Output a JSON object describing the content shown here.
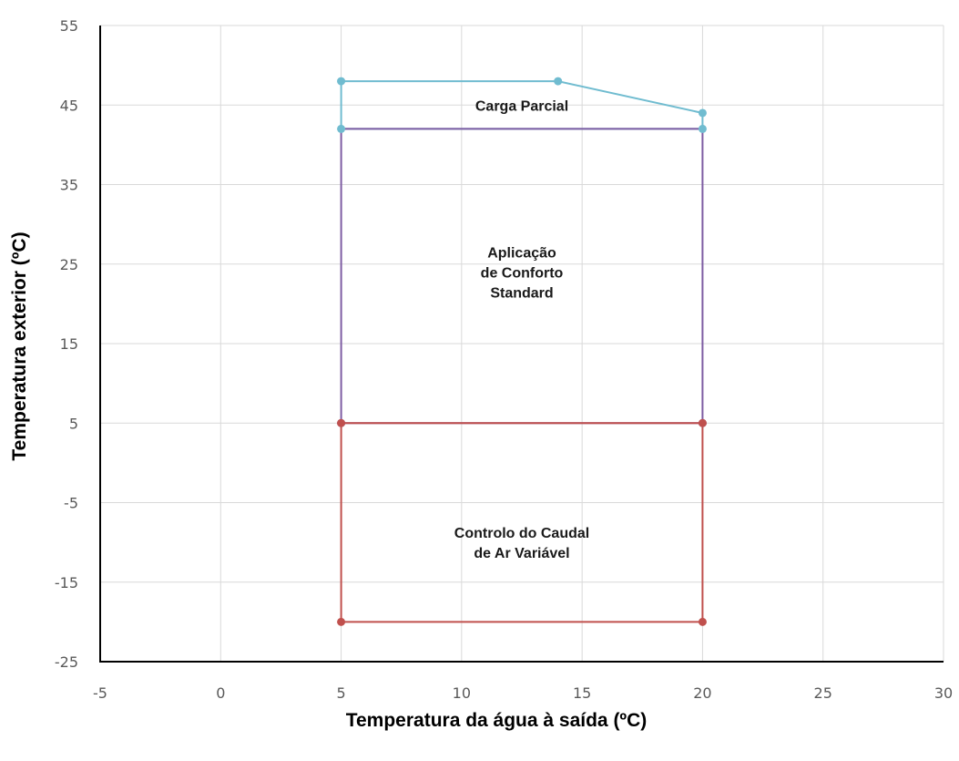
{
  "chart_data": {
    "type": "line",
    "title": "",
    "xlabel": "Temperatura da água à saída (ºC)",
    "ylabel": "Temperatura exterior (ºC)",
    "xlim": [
      -5,
      30
    ],
    "ylim": [
      -25,
      55
    ],
    "x_ticks": [
      -5,
      0,
      5,
      10,
      15,
      20,
      25,
      30
    ],
    "y_ticks": [
      -25,
      -15,
      -5,
      5,
      15,
      25,
      35,
      45,
      55
    ],
    "grid": true,
    "legend": "none",
    "series": [
      {
        "color": "#70bcd0",
        "points": [
          [
            5,
            42
          ],
          [
            5,
            48
          ],
          [
            14,
            48
          ],
          [
            20,
            44
          ],
          [
            20,
            42
          ],
          [
            5,
            42
          ]
        ],
        "markers": [
          [
            5,
            48
          ],
          [
            14,
            48
          ],
          [
            20,
            44
          ],
          [
            5,
            42
          ],
          [
            20,
            42
          ]
        ]
      },
      {
        "color": "#7e5da3",
        "points": [
          [
            5,
            5
          ],
          [
            5,
            42
          ],
          [
            20,
            42
          ],
          [
            20,
            5
          ],
          [
            5,
            5
          ]
        ],
        "markers": [
          [
            5,
            5
          ],
          [
            20,
            5
          ]
        ]
      },
      {
        "color": "#c0504d",
        "points": [
          [
            5,
            -20
          ],
          [
            5,
            5
          ],
          [
            20,
            5
          ],
          [
            20,
            -20
          ],
          [
            5,
            -20
          ]
        ],
        "markers": [
          [
            5,
            -20
          ],
          [
            20,
            -20
          ],
          [
            5,
            5
          ],
          [
            20,
            5
          ]
        ]
      }
    ],
    "annotations": [
      {
        "lines": [
          "Carga Parcial"
        ],
        "x": 12.5,
        "y": 45
      },
      {
        "lines": [
          "Aplicação",
          "de Conforto",
          "Standard"
        ],
        "x": 12.5,
        "y": 24
      },
      {
        "lines": [
          "Controlo do Caudal",
          "de Ar Variável"
        ],
        "x": 12.5,
        "y": -10
      }
    ]
  }
}
